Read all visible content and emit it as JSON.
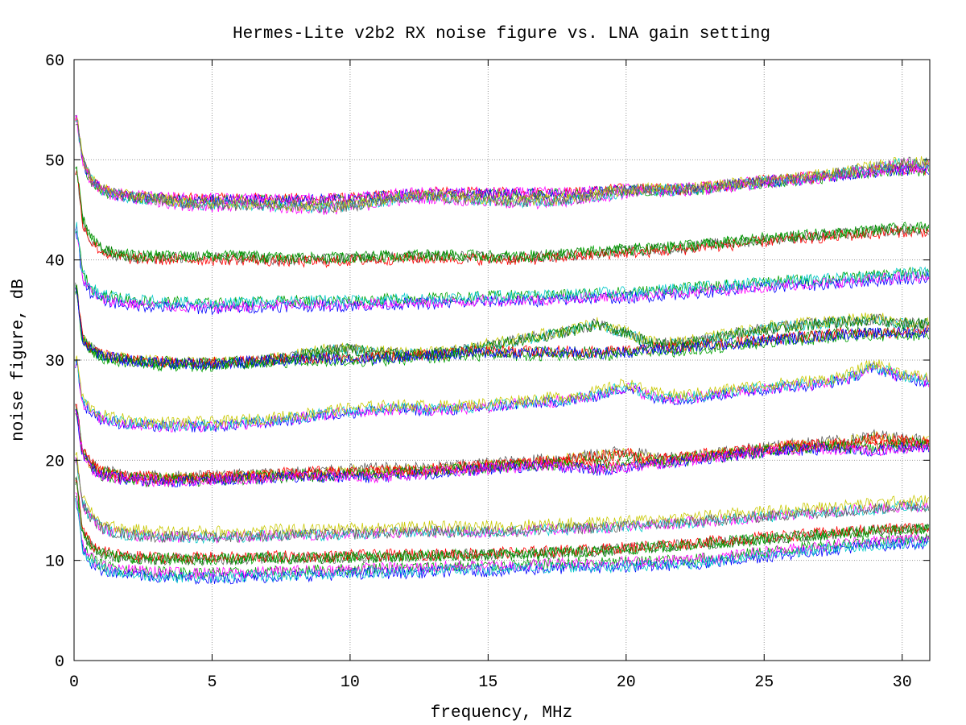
{
  "chart_data": {
    "type": "line",
    "title": "Hermes-Lite v2b2 RX noise figure vs. LNA gain setting",
    "xlabel": "frequency, MHz",
    "ylabel": "noise figure, dB",
    "xlim": [
      0,
      31
    ],
    "ylim": [
      0,
      60
    ],
    "xticks": [
      "0",
      "5",
      "10",
      "15",
      "20",
      "25",
      "30"
    ],
    "yticks": [
      "0",
      "10",
      "20",
      "30",
      "40",
      "50",
      "60"
    ],
    "grid": true,
    "colors": [
      "#ff0000",
      "#00a000",
      "#0000ff",
      "#ff00ff",
      "#00c8c8",
      "#c8c800",
      "#606060",
      "#008000"
    ],
    "x": [
      0.1,
      0.3,
      0.6,
      1,
      1.5,
      2,
      3,
      4,
      5,
      6,
      7,
      8,
      9,
      10,
      11,
      12,
      13,
      14,
      15,
      16,
      17,
      18,
      19,
      20,
      21,
      22,
      23,
      24,
      25,
      26,
      27,
      28,
      29,
      30,
      31
    ],
    "series": [
      {
        "values": [
          54,
          50,
          48,
          47,
          46.5,
          46.3,
          46.2,
          46,
          46,
          46,
          46,
          46,
          46,
          46,
          46.3,
          46.5,
          46.6,
          46.6,
          46.6,
          46.6,
          46.6,
          46.6,
          46.8,
          47,
          47,
          47,
          47.2,
          47.5,
          47.8,
          48,
          48.2,
          48.5,
          48.8,
          49,
          49
        ]
      },
      {
        "values": [
          54,
          50,
          48,
          47,
          46.5,
          46.2,
          46,
          45.6,
          45.5,
          45.5,
          45.4,
          45.3,
          45.2,
          45.3,
          45.8,
          46.2,
          46.3,
          46.1,
          45.9,
          45.8,
          45.8,
          46,
          46.4,
          46.8,
          47,
          47,
          47.2,
          47.5,
          47.8,
          48,
          48.3,
          48.7,
          49.2,
          49.6,
          49.6
        ]
      },
      {
        "values": [
          49,
          44,
          42,
          41,
          40.5,
          40.3,
          40.2,
          40.2,
          40.2,
          40.2,
          40.1,
          40,
          40,
          40.1,
          40.2,
          40.3,
          40.3,
          40.3,
          40.2,
          40.2,
          40.3,
          40.5,
          40.7,
          40.9,
          41,
          41.2,
          41.5,
          41.7,
          42,
          42.2,
          42.4,
          42.6,
          42.8,
          43,
          43
        ]
      },
      {
        "values": [
          43,
          38.5,
          37,
          36.3,
          36,
          35.8,
          35.6,
          35.5,
          35.4,
          35.5,
          35.6,
          35.7,
          35.7,
          35.7,
          35.8,
          35.9,
          35.9,
          36,
          36.1,
          36.2,
          36.2,
          36.3,
          36.5,
          36.5,
          36.7,
          36.9,
          37.1,
          37.3,
          37.5,
          37.7,
          37.8,
          38,
          38.2,
          38.4,
          38.5
        ]
      },
      {
        "values": [
          37,
          32,
          31,
          30.3,
          30,
          29.8,
          29.6,
          29.5,
          29.5,
          29.6,
          29.8,
          30.2,
          30.8,
          31,
          30.6,
          30.5,
          30.5,
          30.8,
          31.3,
          31.8,
          32.3,
          32.8,
          33.5,
          32.5,
          31.5,
          31.5,
          32,
          32.5,
          33,
          33.3,
          33.5,
          33.7,
          34,
          33.5,
          33.5
        ]
      },
      {
        "values": [
          37,
          32,
          31,
          30.3,
          30,
          29.8,
          29.6,
          29.5,
          29.5,
          29.6,
          29.8,
          29.9,
          30,
          30,
          30,
          30.2,
          30.3,
          30.5,
          30.6,
          30.6,
          30.6,
          30.6,
          30.5,
          30.7,
          30.9,
          31,
          31.3,
          31.5,
          31.8,
          32,
          32.2,
          32.5,
          32.5,
          32.6,
          32.6
        ]
      },
      {
        "values": [
          30,
          26,
          25,
          24.3,
          24,
          23.8,
          23.6,
          23.6,
          23.6,
          23.8,
          24,
          24.3,
          24.7,
          25,
          25.2,
          25.3,
          25.2,
          25.3,
          25.5,
          25.8,
          26,
          26.2,
          26.7,
          27.5,
          26.5,
          26.3,
          26.6,
          27,
          27.3,
          27.6,
          27.8,
          28.3,
          29.5,
          28.5,
          28
        ]
      },
      {
        "values": [
          25,
          21,
          19.5,
          18.8,
          18.5,
          18.3,
          18.2,
          18.2,
          18.3,
          18.4,
          18.5,
          18.6,
          18.7,
          18.9,
          19,
          19,
          19.1,
          19.3,
          19.5,
          19.7,
          19.9,
          20.1,
          20.4,
          20.8,
          20.1,
          20.2,
          20.5,
          20.8,
          21.1,
          21.4,
          21.6,
          21.8,
          22.3,
          22,
          21.8
        ]
      },
      {
        "values": [
          25,
          21,
          19.5,
          18.8,
          18.5,
          18.3,
          18.2,
          18.2,
          18.3,
          18.4,
          18.5,
          18.6,
          18.7,
          18.6,
          18.6,
          18.8,
          19,
          19.2,
          19.4,
          19.6,
          19.7,
          19.6,
          19.3,
          19.5,
          19.9,
          20.2,
          20.5,
          20.8,
          21.1,
          21.3,
          21.4,
          21.3,
          21.2,
          21.5,
          21.7
        ]
      },
      {
        "values": [
          20,
          16,
          14.5,
          13.5,
          13,
          12.8,
          12.6,
          12.6,
          12.6,
          12.6,
          12.7,
          12.8,
          12.8,
          12.9,
          13,
          13,
          13.1,
          13.1,
          13.1,
          13.2,
          13.3,
          13.4,
          13.5,
          13.6,
          13.8,
          14,
          14.2,
          14.4,
          14.6,
          14.8,
          15,
          15.2,
          15.4,
          15.6,
          15.7
        ]
      },
      {
        "values": [
          18,
          13,
          11.5,
          10.8,
          10.5,
          10.3,
          10.2,
          10.2,
          10.2,
          10.2,
          10.3,
          10.3,
          10.3,
          10.4,
          10.4,
          10.5,
          10.5,
          10.6,
          10.6,
          10.7,
          10.8,
          10.9,
          11,
          11.2,
          11.4,
          11.6,
          11.8,
          12,
          12.2,
          12.4,
          12.6,
          12.8,
          13,
          13.1,
          13.2
        ]
      },
      {
        "values": [
          16,
          11.5,
          10,
          9.3,
          9,
          8.8,
          8.6,
          8.5,
          8.5,
          8.5,
          8.6,
          8.7,
          8.8,
          8.9,
          9,
          9,
          9.1,
          9.2,
          9.2,
          9.3,
          9.4,
          9.5,
          9.5,
          9.6,
          9.7,
          9.8,
          10,
          10.3,
          10.6,
          10.9,
          11.2,
          11.5,
          11.7,
          11.9,
          12
        ]
      }
    ]
  }
}
